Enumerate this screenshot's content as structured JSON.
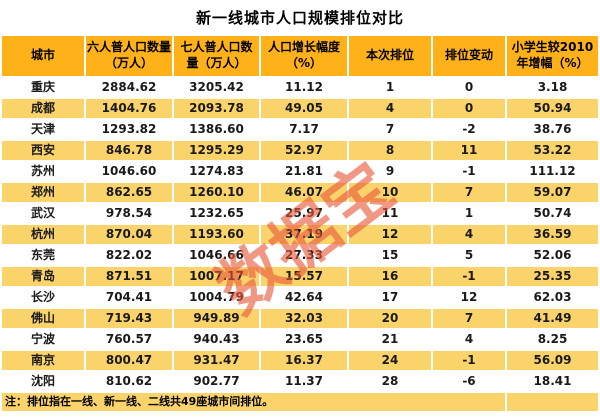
{
  "title": "新一线城市人口规模排位对比",
  "watermark_text": "数据宝",
  "note": "注：排位指在一线、新一线、二线共49座城市间排位。",
  "colors": {
    "header_bg": "#FFB119",
    "stripe_bg": "#FBD36B",
    "text": "#1A1A1A",
    "watermark": "rgba(233,89,58,0.62)"
  },
  "table": {
    "columns": [
      "城市",
      "六人普人口数量（万人）",
      "七人普人口数量（万人）",
      "人口增长幅度（%）",
      "本次排位",
      "排位变动",
      "小学生较2010年增幅（%）"
    ],
    "rows": [
      [
        "重庆",
        "2884.62",
        "3205.42",
        "11.12",
        "1",
        "0",
        "3.18"
      ],
      [
        "成都",
        "1404.76",
        "2093.78",
        "49.05",
        "4",
        "0",
        "50.94"
      ],
      [
        "天津",
        "1293.82",
        "1386.60",
        "7.17",
        "7",
        "-2",
        "38.76"
      ],
      [
        "西安",
        "846.78",
        "1295.29",
        "52.97",
        "8",
        "11",
        "53.22"
      ],
      [
        "苏州",
        "1046.60",
        "1274.83",
        "21.81",
        "9",
        "-1",
        "111.12"
      ],
      [
        "郑州",
        "862.65",
        "1260.10",
        "46.07",
        "10",
        "7",
        "59.07"
      ],
      [
        "武汉",
        "978.54",
        "1232.65",
        "25.97",
        "11",
        "1",
        "50.74"
      ],
      [
        "杭州",
        "870.04",
        "1193.60",
        "37.19",
        "12",
        "4",
        "36.59"
      ],
      [
        "东莞",
        "822.02",
        "1046.66",
        "27.33",
        "15",
        "5",
        "52.06"
      ],
      [
        "青岛",
        "871.51",
        "1007.17",
        "15.57",
        "16",
        "-1",
        "25.35"
      ],
      [
        "长沙",
        "704.41",
        "1004.79",
        "42.64",
        "17",
        "12",
        "62.03"
      ],
      [
        "佛山",
        "719.43",
        "949.89",
        "32.03",
        "20",
        "7",
        "41.49"
      ],
      [
        "宁波",
        "760.57",
        "940.43",
        "23.65",
        "21",
        "4",
        "8.25"
      ],
      [
        "南京",
        "800.47",
        "931.47",
        "16.37",
        "24",
        "-1",
        "56.09"
      ],
      [
        "沈阳",
        "810.62",
        "902.77",
        "11.37",
        "28",
        "-6",
        "18.41"
      ]
    ]
  },
  "chart_data": {
    "type": "table",
    "title": "新一线城市人口规模排位对比",
    "columns": [
      "城市",
      "六人普人口数量（万人）",
      "七人普人口数量（万人）",
      "人口增长幅度（%）",
      "本次排位",
      "排位变动",
      "小学生较2010年增幅（%）"
    ],
    "rows": [
      [
        "重庆",
        2884.62,
        3205.42,
        11.12,
        1,
        0,
        3.18
      ],
      [
        "成都",
        1404.76,
        2093.78,
        49.05,
        4,
        0,
        50.94
      ],
      [
        "天津",
        1293.82,
        1386.6,
        7.17,
        7,
        -2,
        38.76
      ],
      [
        "西安",
        846.78,
        1295.29,
        52.97,
        8,
        11,
        53.22
      ],
      [
        "苏州",
        1046.6,
        1274.83,
        21.81,
        9,
        -1,
        111.12
      ],
      [
        "郑州",
        862.65,
        1260.1,
        46.07,
        10,
        7,
        59.07
      ],
      [
        "武汉",
        978.54,
        1232.65,
        25.97,
        11,
        1,
        50.74
      ],
      [
        "杭州",
        870.04,
        1193.6,
        37.19,
        12,
        4,
        36.59
      ],
      [
        "东莞",
        822.02,
        1046.66,
        27.33,
        15,
        5,
        52.06
      ],
      [
        "青岛",
        871.51,
        1007.17,
        15.57,
        16,
        -1,
        25.35
      ],
      [
        "长沙",
        704.41,
        1004.79,
        42.64,
        17,
        12,
        62.03
      ],
      [
        "佛山",
        719.43,
        949.89,
        32.03,
        20,
        7,
        41.49
      ],
      [
        "宁波",
        760.57,
        940.43,
        23.65,
        21,
        4,
        8.25
      ],
      [
        "南京",
        800.47,
        931.47,
        16.37,
        24,
        -1,
        56.09
      ],
      [
        "沈阳",
        810.62,
        902.77,
        11.37,
        28,
        -6,
        18.41
      ]
    ],
    "note": "注：排位指在一线、新一线、二线共49座城市间排位。"
  }
}
